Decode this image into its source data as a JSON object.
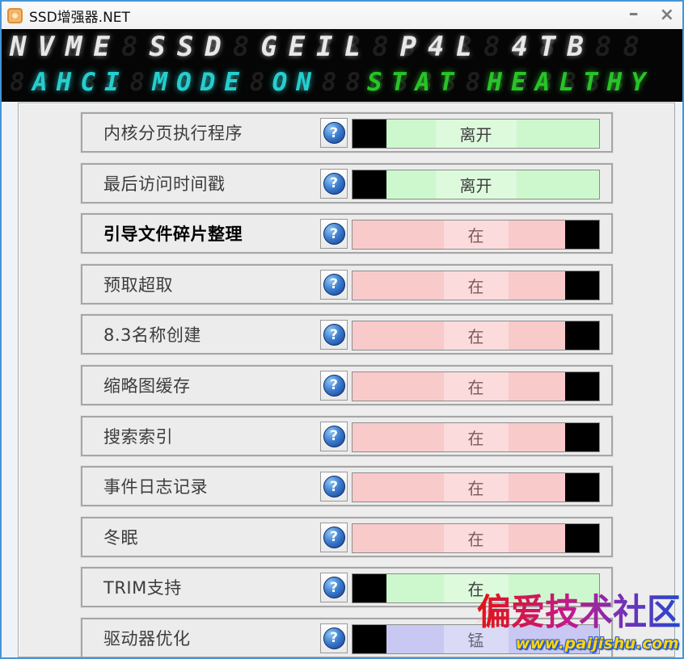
{
  "window": {
    "title": "SSD增强器.NET",
    "minimize_glyph": "–",
    "close_glyph": "×"
  },
  "led": {
    "line1": "NVME SSD GEIL P4L 4TB",
    "line1_ghost": "88888888888888888888888",
    "line2_left": "AHCI MODE ON",
    "line2_right": "STAT HEALTHY",
    "line2_ghost": "88888888888888888888888888",
    "line1_color": "#e8e8e8",
    "line2_left_color": "#25cfcf",
    "line2_right_color": "#28c428",
    "panel_color": "#050505"
  },
  "help_icon_glyph": "?",
  "rows": [
    {
      "label": "内核分页执行程序",
      "value": "离开",
      "color": "green",
      "handle": "left",
      "bold": false
    },
    {
      "label": "最后访问时间戳",
      "value": "离开",
      "color": "green",
      "handle": "left",
      "bold": false
    },
    {
      "label": "引导文件碎片整理",
      "value": "在",
      "color": "pink",
      "handle": "right",
      "bold": true
    },
    {
      "label": "预取超取",
      "value": "在",
      "color": "pink",
      "handle": "right",
      "bold": false
    },
    {
      "label": "8.3名称创建",
      "value": "在",
      "color": "pink",
      "handle": "right",
      "bold": false
    },
    {
      "label": "缩略图缓存",
      "value": "在",
      "color": "pink",
      "handle": "right",
      "bold": false
    },
    {
      "label": "搜索索引",
      "value": "在",
      "color": "pink",
      "handle": "right",
      "bold": false
    },
    {
      "label": "事件日志记录",
      "value": "在",
      "color": "pink",
      "handle": "right",
      "bold": false
    },
    {
      "label": "冬眠",
      "value": "在",
      "color": "pink",
      "handle": "right",
      "bold": false
    },
    {
      "label": "TRIM支持",
      "value": "在",
      "color": "green",
      "handle": "left",
      "bold": false
    },
    {
      "label": "驱动器优化",
      "value": "锰",
      "color": "lavender",
      "handle": "left",
      "bold": false
    }
  ],
  "colors": {
    "green": {
      "track": "#cdf8cd",
      "text": "#3d3d3d"
    },
    "pink": {
      "track": "#f9caca",
      "text": "#7d5a5a"
    },
    "lavender": {
      "track": "#c8c8f2",
      "text": "#66667a"
    },
    "handle": "#000000"
  },
  "watermark": {
    "title": "偏爱技术社区",
    "url": "www.paijishu.com"
  }
}
